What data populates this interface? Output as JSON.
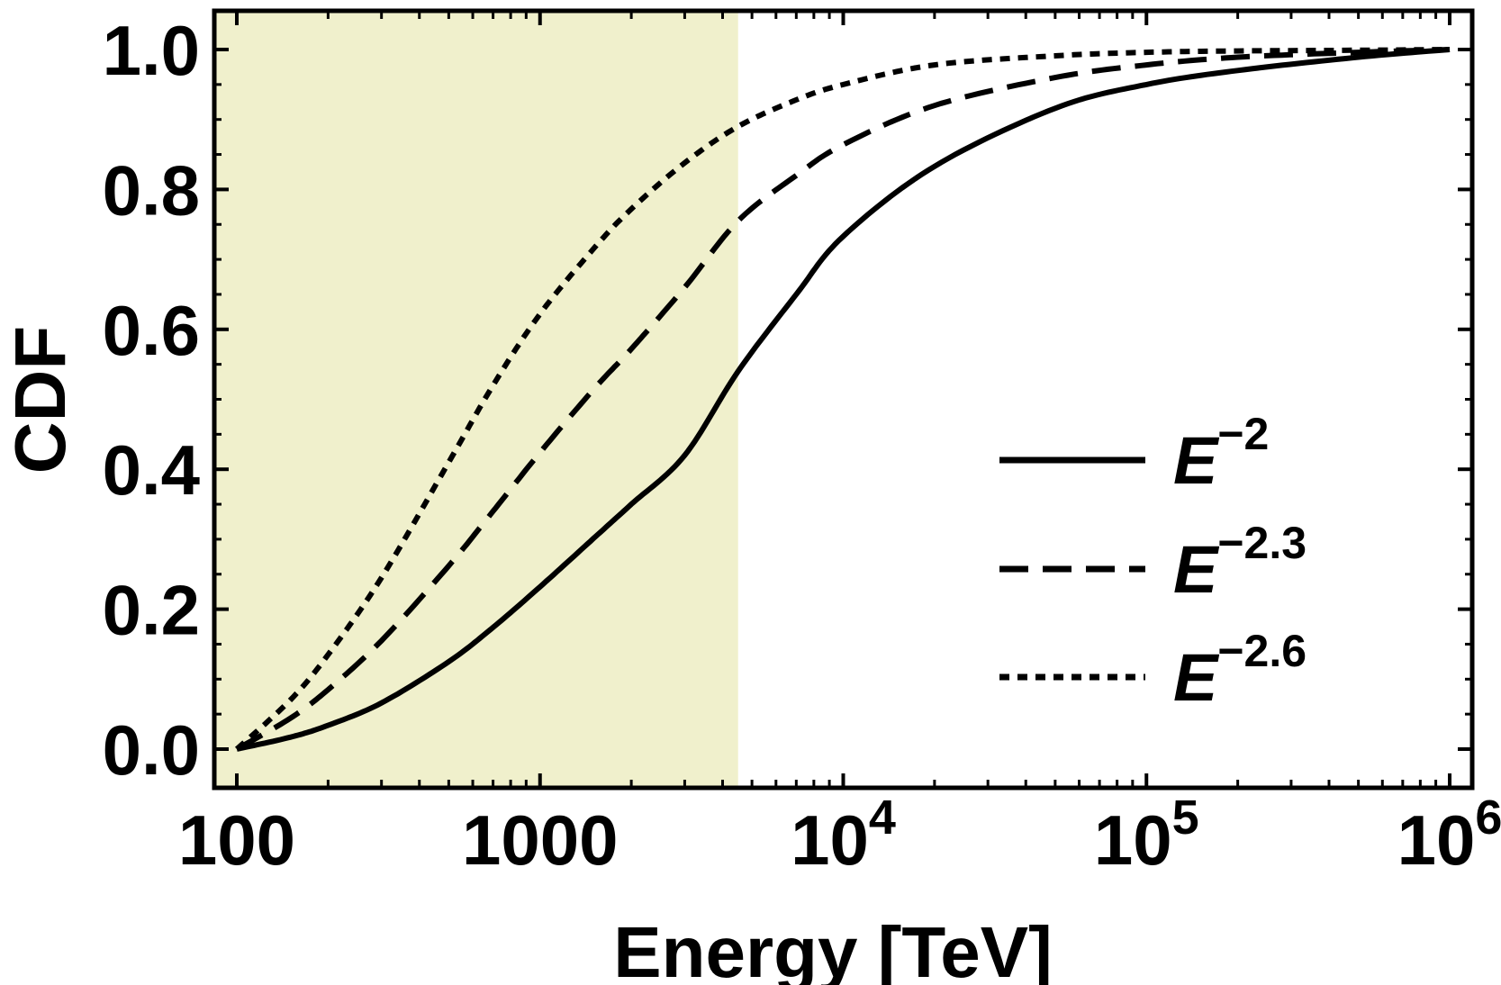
{
  "chart_data": {
    "type": "line",
    "title": "",
    "xlabel": "Energy [TeV]",
    "ylabel": "CDF",
    "xscale": "log",
    "xlim": [
      100,
      1000000
    ],
    "ylim": [
      0.0,
      1.0
    ],
    "grid": false,
    "legend_position": "right",
    "shaded_region": {
      "x_from": 100,
      "x_to": 4500,
      "color": "#f0f0cc"
    },
    "x_ticks": [
      {
        "value": 100,
        "base": "100",
        "exp": ""
      },
      {
        "value": 1000,
        "base": "1000",
        "exp": ""
      },
      {
        "value": 10000,
        "base": "10",
        "exp": "4"
      },
      {
        "value": 100000,
        "base": "10",
        "exp": "5"
      },
      {
        "value": 1000000,
        "base": "10",
        "exp": "6"
      }
    ],
    "y_ticks": [
      {
        "value": 0.0,
        "label": "0.0"
      },
      {
        "value": 0.2,
        "label": "0.2"
      },
      {
        "value": 0.4,
        "label": "0.4"
      },
      {
        "value": 0.6,
        "label": "0.6"
      },
      {
        "value": 0.8,
        "label": "0.8"
      },
      {
        "value": 1.0,
        "label": "1.0"
      }
    ],
    "series": [
      {
        "name": "E^-2",
        "base": "E",
        "exp": "−2",
        "style": "solid",
        "color": "#000000",
        "x": [
          100,
          150,
          200,
          300,
          500,
          700,
          1000,
          1500,
          2000,
          3000,
          4500,
          7000,
          10000,
          20000,
          50000,
          100000,
          200000,
          500000,
          1000000
        ],
        "y": [
          0.0,
          0.017,
          0.034,
          0.066,
          0.125,
          0.174,
          0.232,
          0.301,
          0.35,
          0.42,
          0.54,
          0.65,
          0.733,
          0.833,
          0.916,
          0.95,
          0.97,
          0.989,
          1.0
        ]
      },
      {
        "name": "E^-2.3",
        "base": "E",
        "exp": "−2.3",
        "style": "dashed",
        "color": "#000000",
        "x": [
          100,
          150,
          200,
          300,
          500,
          700,
          1000,
          1500,
          2000,
          3000,
          4500,
          7000,
          10000,
          20000,
          50000,
          100000,
          200000,
          500000,
          1000000
        ],
        "y": [
          0.0,
          0.044,
          0.085,
          0.155,
          0.262,
          0.34,
          0.424,
          0.514,
          0.572,
          0.66,
          0.755,
          0.82,
          0.864,
          0.92,
          0.96,
          0.978,
          0.989,
          0.996,
          1.0
        ]
      },
      {
        "name": "E^-2.6",
        "base": "E",
        "exp": "−2.6",
        "style": "dotted",
        "color": "#000000",
        "x": [
          100,
          150,
          200,
          300,
          500,
          700,
          1000,
          1500,
          2000,
          3000,
          4500,
          7000,
          10000,
          20000,
          50000,
          100000,
          200000,
          500000,
          1000000
        ],
        "y": [
          0.0,
          0.07,
          0.135,
          0.245,
          0.41,
          0.52,
          0.622,
          0.715,
          0.772,
          0.838,
          0.89,
          0.928,
          0.95,
          0.978,
          0.991,
          0.996,
          0.998,
          0.999,
          1.0
        ]
      }
    ]
  }
}
